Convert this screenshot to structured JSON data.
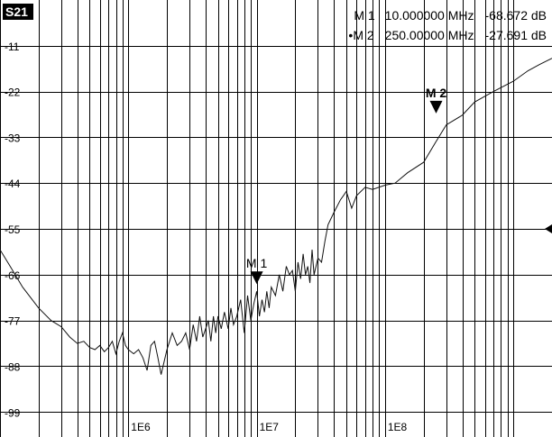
{
  "chart_data": {
    "type": "line",
    "trace_label": "S21",
    "x_scale": "log",
    "xlim": [
      100000,
      2000000000
    ],
    "ylim": [
      -105,
      0
    ],
    "grid": true,
    "y_ticks": [
      {
        "value": -11,
        "label": "-11"
      },
      {
        "value": -22,
        "label": "-22"
      },
      {
        "value": -33,
        "label": "-33"
      },
      {
        "value": -44,
        "label": "-44"
      },
      {
        "value": -55,
        "label": "-55"
      },
      {
        "value": -66,
        "label": "-66"
      },
      {
        "value": -77,
        "label": "-77"
      },
      {
        "value": -88,
        "label": "-88"
      },
      {
        "value": -99,
        "label": "-99"
      }
    ],
    "x_ticks": [
      {
        "value": 1000000,
        "label": "1E6"
      },
      {
        "value": 10000000,
        "label": "1E7"
      },
      {
        "value": 100000000,
        "label": "1E8"
      }
    ],
    "series": [
      {
        "x": [
          100000,
          120000,
          150000,
          200000,
          250000,
          300000,
          350000,
          400000,
          450000,
          500000,
          550000,
          600000,
          650000,
          700000,
          750000,
          800000,
          850000,
          900000,
          950000,
          1000000,
          1100000,
          1200000,
          1300000,
          1400000,
          1500000,
          1600000,
          1700000,
          1800000,
          2000000,
          2200000,
          2400000,
          2600000,
          2800000,
          3000000,
          3200000,
          3400000,
          3600000,
          3800000,
          4000000,
          4200000,
          4400000,
          4600000,
          4800000,
          5000000,
          5300000,
          5600000,
          6000000,
          6300000,
          6600000,
          7000000,
          7500000,
          8000000,
          8500000,
          9000000,
          9500000,
          10000000,
          10500000,
          11000000,
          11500000,
          12000000,
          12500000,
          13000000,
          14000000,
          15000000,
          16000000,
          17000000,
          18000000,
          19000000,
          20000000,
          21000000,
          22000000,
          23000000,
          24000000,
          25000000,
          26000000,
          27000000,
          28000000,
          30000000,
          32000000,
          34000000,
          36000000,
          40000000,
          45000000,
          50000000,
          55000000,
          60000000,
          70000000,
          80000000,
          100000000,
          120000000,
          150000000,
          200000000,
          250000000,
          300000000,
          400000000,
          500000000,
          700000000,
          1000000000,
          1300000000,
          1600000000,
          2000000000
        ],
        "y": [
          -60,
          -64,
          -69,
          -74,
          -77,
          -78.5,
          -81,
          -82.5,
          -82,
          -83.5,
          -84,
          -83,
          -84.5,
          -83.5,
          -82,
          -85,
          -82,
          -80,
          -83,
          -84,
          -85,
          -84,
          -86,
          -89,
          -83,
          -82,
          -86,
          -90,
          -84,
          -80,
          -83,
          -82,
          -80,
          -84,
          -78,
          -82,
          -76,
          -81,
          -79,
          -77,
          -82,
          -76,
          -80,
          -76,
          -79,
          -75,
          -79,
          -74,
          -78,
          -76,
          -72,
          -80,
          -71,
          -77,
          -73,
          -70,
          -76,
          -72,
          -75,
          -70,
          -74,
          -69,
          -71,
          -66,
          -70,
          -64,
          -66,
          -65,
          -70,
          -63,
          -67,
          -61,
          -66,
          -64,
          -68,
          -60,
          -66,
          -62,
          -63,
          -58,
          -54,
          -51,
          -48,
          -46,
          -50,
          -47,
          -45,
          -45.5,
          -44.5,
          -44,
          -41.5,
          -39,
          -34,
          -30,
          -27.7,
          -24.5,
          -22,
          -19.5,
          -17,
          -15.5,
          -14
        ]
      }
    ],
    "markers": [
      {
        "label": "M 1",
        "x": 10000000,
        "y": -68.672,
        "freq": "10.000000 MHz",
        "value": "-68.672 dB",
        "prefix": ""
      },
      {
        "label": "M 2",
        "x": 250000000,
        "y": -27.691,
        "freq": "250.00000 MHz",
        "value": "-27.691 dB",
        "prefix": "•"
      }
    ],
    "reference_value": -55,
    "colors": {
      "trace": "#111111",
      "grid": "#000000",
      "background": "#ffffff"
    }
  }
}
